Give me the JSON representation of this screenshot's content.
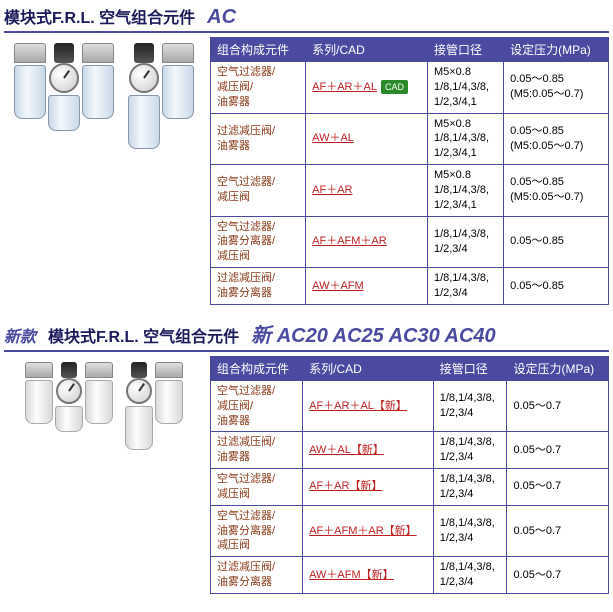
{
  "section1": {
    "title_main": "模块式F.R.L. 空气组合元件",
    "title_code": "AC",
    "headers": [
      "组合构成元件",
      "系列/CAD",
      "接管口径",
      "设定压力(MPa)"
    ],
    "rows": [
      {
        "comp": "空气过滤器/\n减压阀/\n油雾器",
        "series": "AF＋AR＋AL",
        "cad": true,
        "port": "M5×0.8\n1/8,1/4,3/8,\n1/2,3/4,1",
        "press": "0.05～0.85\n(M5:0.05～0.7)"
      },
      {
        "comp": "过滤减压阀/\n油雾器",
        "series": "AW＋AL",
        "cad": false,
        "port": "M5×0.8\n1/8,1/4,3/8,\n1/2,3/4,1",
        "press": "0.05～0.85\n(M5:0.05～0.7)"
      },
      {
        "comp": "空气过滤器/\n减压阀",
        "series": "AF＋AR",
        "cad": false,
        "port": "M5×0.8\n1/8,1/4,3/8,\n1/2,3/4,1",
        "press": "0.05～0.85\n(M5:0.05～0.7)"
      },
      {
        "comp": "空气过滤器/\n油雾分离器/\n减压阀",
        "series": "AF＋AFM＋AR",
        "cad": false,
        "port": "1/8,1/4,3/8,\n1/2,3/4",
        "press": "0.05～0.85"
      },
      {
        "comp": "过滤减压阀/\n油雾分离器",
        "series": "AW＋AFM",
        "cad": false,
        "port": "1/8,1/4,3/8,\n1/2,3/4",
        "press": "0.05～0.85"
      }
    ]
  },
  "section2": {
    "title_new": "新款",
    "title_main": "模块式F.R.L. 空气组合元件",
    "title_code": "新 AC20 AC25 AC30 AC40",
    "headers": [
      "组合构成元件",
      "系列/CAD",
      "接管口径",
      "设定压力(MPa)"
    ],
    "new_tag": "【新】",
    "rows": [
      {
        "comp": "空气过滤器/\n减压阀/\n油雾器",
        "series": "AF＋AR＋AL",
        "port": "1/8,1/4,3/8,\n1/2,3/4",
        "press": "0.05～0.7"
      },
      {
        "comp": "过滤减压阀/\n油雾器",
        "series": "AW＋AL",
        "port": "1/8,1/4,3/8,\n1/2,3/4",
        "press": "0.05～0.7"
      },
      {
        "comp": "空气过滤器/\n减压阀",
        "series": "AF＋AR",
        "port": "1/8,1/4,3/8,\n1/2,3/4",
        "press": "0.05～0.7"
      },
      {
        "comp": "空气过滤器/\n油雾分离器/\n减压阀",
        "series": "AF＋AFM＋AR",
        "port": "1/8,1/4,3/8,\n1/2,3/4",
        "press": "0.05～0.7"
      },
      {
        "comp": "过滤减压阀/\n油雾分离器",
        "series": "AW＋AFM",
        "port": "1/8,1/4,3/8,\n1/2,3/4",
        "press": "0.05～0.7"
      }
    ]
  },
  "cad_label": "CAD"
}
